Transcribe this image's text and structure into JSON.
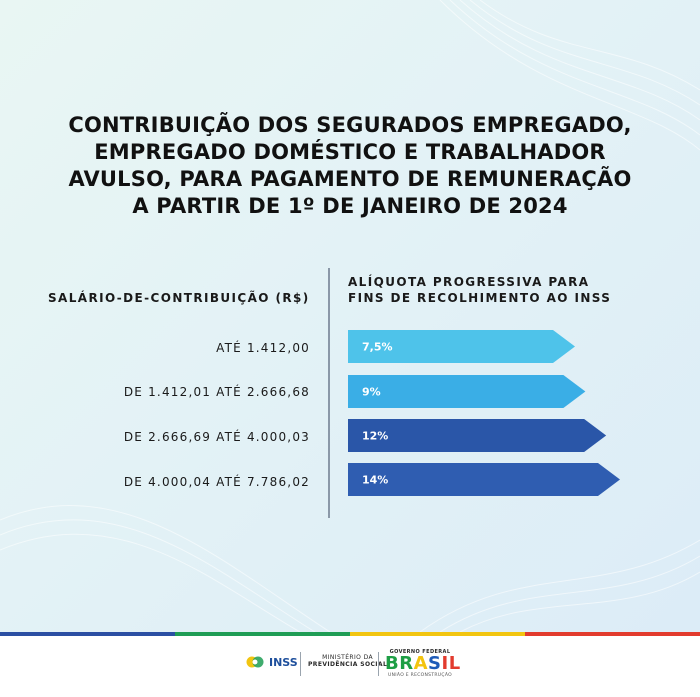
{
  "title_lines": [
    "CONTRIBUIÇÃO DOS SEGURADOS EMPREGADO,",
    "EMPREGADO DOMÉSTICO E TRABALHADOR",
    "AVULSO, PARA PAGAMENTO DE REMUNERAÇÃO",
    "A PARTIR DE 1º DE JANEIRO DE 2024"
  ],
  "left_header": "SALÁRIO-DE-CONTRIBUIÇÃO (R$)",
  "right_header_lines": [
    "ALÍQUOTA PROGRESSIVA PARA",
    "FINS DE RECOLHIMENTO AO INSS"
  ],
  "chart_data": {
    "type": "bar",
    "orientation": "horizontal",
    "title": "CONTRIBUIÇÃO DOS SEGURADOS EMPREGADO, EMPREGADO DOMÉSTICO E TRABALHADOR AVULSO, PARA PAGAMENTO DE REMUNERAÇÃO A PARTIR DE 1º DE JANEIRO DE 2024",
    "xlabel": "ALÍQUOTA PROGRESSIVA PARA FINS DE RECOLHIMENTO AO INSS",
    "ylabel": "SALÁRIO-DE-CONTRIBUIÇÃO (R$)",
    "categories": [
      "ATÉ 1.412,00",
      "DE 1.412,01 ATÉ 2.666,68",
      "DE 2.666,69 ATÉ 4.000,03",
      "DE 4.000,04 ATÉ 7.786,02"
    ],
    "values": [
      7.5,
      9,
      12,
      14
    ],
    "value_labels": [
      "7,5%",
      "9%",
      "12%",
      "14%"
    ],
    "unit": "%",
    "grid": false,
    "legend": "none",
    "colors": [
      "#4ec3ea",
      "#3aaee6",
      "#2a56a8",
      "#2f5db1"
    ]
  },
  "footer": {
    "inss_logo": "INSS",
    "ministry_lines": [
      "MINISTÉRIO DA",
      "PREVIDÊNCIA SOCIAL"
    ],
    "gov_top": "GOVERNO FEDERAL",
    "gov_word_parts": [
      "BR",
      "A",
      "S",
      "IL"
    ],
    "gov_sub": "UNIÃO E RECONSTRUÇÃO"
  },
  "stripe_colors": [
    "#2b4fa3",
    "#1f9d55",
    "#f2c511",
    "#e23b2e"
  ]
}
